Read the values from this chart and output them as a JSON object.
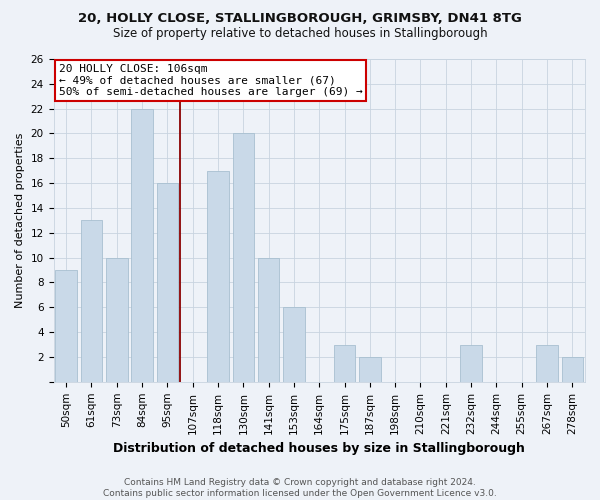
{
  "title1": "20, HOLLY CLOSE, STALLINGBOROUGH, GRIMSBY, DN41 8TG",
  "title2": "Size of property relative to detached houses in Stallingborough",
  "xlabel": "Distribution of detached houses by size in Stallingborough",
  "ylabel": "Number of detached properties",
  "categories": [
    "50sqm",
    "61sqm",
    "73sqm",
    "84sqm",
    "95sqm",
    "107sqm",
    "118sqm",
    "130sqm",
    "141sqm",
    "153sqm",
    "164sqm",
    "175sqm",
    "187sqm",
    "198sqm",
    "210sqm",
    "221sqm",
    "232sqm",
    "244sqm",
    "255sqm",
    "267sqm",
    "278sqm"
  ],
  "values": [
    9,
    13,
    10,
    22,
    16,
    0,
    17,
    20,
    10,
    6,
    0,
    3,
    2,
    0,
    0,
    0,
    3,
    0,
    0,
    3,
    2
  ],
  "bar_color": "#c9d9e8",
  "bar_edgecolor": "#a8bfd0",
  "highlight_line_color": "#8b0000",
  "annotation_text": "20 HOLLY CLOSE: 106sqm\n← 49% of detached houses are smaller (67)\n50% of semi-detached houses are larger (69) →",
  "annotation_box_facecolor": "#ffffff",
  "annotation_box_edgecolor": "#cc0000",
  "ylim": [
    0,
    26
  ],
  "yticks": [
    0,
    2,
    4,
    6,
    8,
    10,
    12,
    14,
    16,
    18,
    20,
    22,
    24,
    26
  ],
  "background_color": "#eef2f8",
  "grid_color": "#c8d4e0",
  "footer_text": "Contains HM Land Registry data © Crown copyright and database right 2024.\nContains public sector information licensed under the Open Government Licence v3.0.",
  "title1_fontsize": 9.5,
  "title2_fontsize": 8.5,
  "xlabel_fontsize": 9,
  "ylabel_fontsize": 8,
  "tick_fontsize": 7.5,
  "annotation_fontsize": 8,
  "footer_fontsize": 6.5
}
